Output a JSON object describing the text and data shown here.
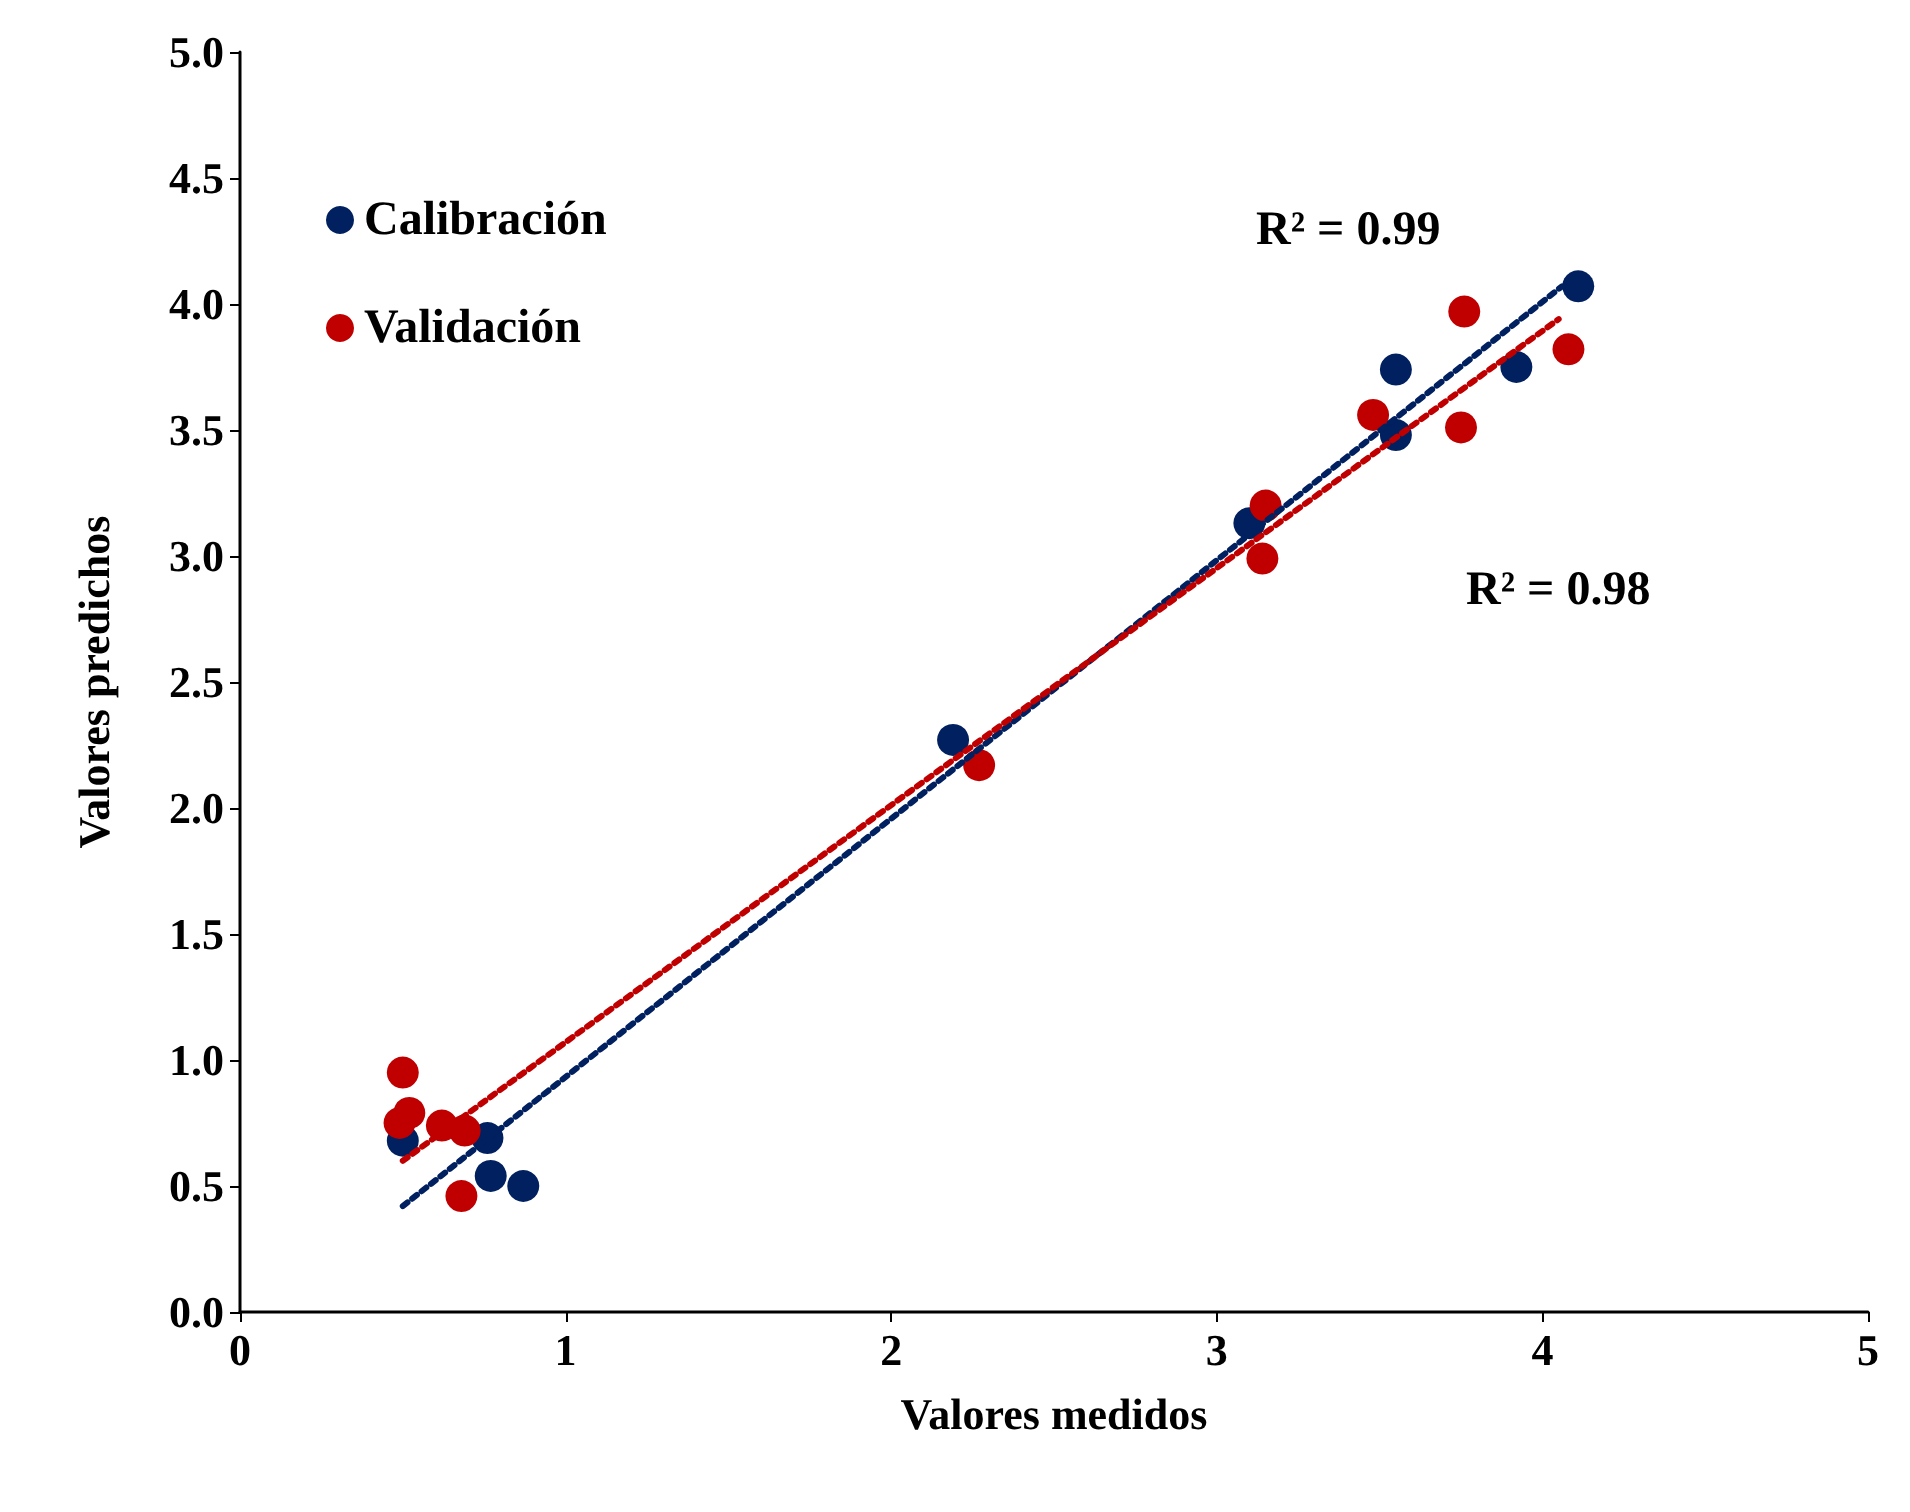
{
  "chart_data": {
    "type": "scatter",
    "xlabel": "Valores medidos",
    "ylabel": "Valores predichos",
    "xlim": [
      0,
      5
    ],
    "xticks": [
      0,
      1,
      2,
      3,
      4,
      5
    ],
    "ylim": [
      0,
      5
    ],
    "yticks": [
      {
        "value": 0,
        "label": "0.0"
      },
      {
        "value": 0.5,
        "label": "0.5"
      },
      {
        "value": 1,
        "label": "1.0"
      },
      {
        "value": 1.5,
        "label": "1.5"
      },
      {
        "value": 2,
        "label": "2.0"
      },
      {
        "value": 2.5,
        "label": "2.5"
      },
      {
        "value": 3,
        "label": "3.0"
      },
      {
        "value": 3.5,
        "label": "3.5"
      },
      {
        "value": 4,
        "label": "4.0"
      },
      {
        "value": 4.5,
        "label": "4.5"
      },
      {
        "value": 5,
        "label": "5.0"
      }
    ],
    "grid": false,
    "legend": "top left",
    "marker": "circle",
    "series": [
      {
        "name": "Calibración",
        "color": "#002060",
        "x": [
          0.5,
          0.76,
          0.77,
          0.87,
          2.19,
          3.1,
          3.55,
          3.55,
          3.92,
          4.11
        ],
        "values": [
          0.68,
          0.69,
          0.54,
          0.5,
          2.27,
          3.13,
          3.74,
          3.48,
          3.75,
          4.07
        ]
      },
      {
        "name": "Validación",
        "color": "#c00000",
        "x": [
          0.5,
          0.52,
          0.49,
          0.62,
          0.69,
          0.68,
          2.27,
          3.15,
          3.14,
          3.48,
          3.76,
          3.75,
          4.08
        ],
        "values": [
          0.95,
          0.79,
          0.75,
          0.74,
          0.72,
          0.46,
          2.17,
          3.2,
          2.99,
          3.56,
          3.97,
          3.51,
          3.82
        ]
      },
      {
        "type": "line",
        "color": "#002060",
        "line_style": "dotted",
        "marker": "none",
        "x": [
          0.5,
          4.06
        ],
        "values": [
          0.42,
          4.07
        ]
      },
      {
        "type": "line",
        "color": "#c00000",
        "line_style": "dotted",
        "marker": "none",
        "x": [
          0.5,
          4.05
        ],
        "values": [
          0.6,
          3.94
        ]
      }
    ],
    "annotations": [
      "R² = 0.99",
      "R² = 0.98"
    ]
  }
}
